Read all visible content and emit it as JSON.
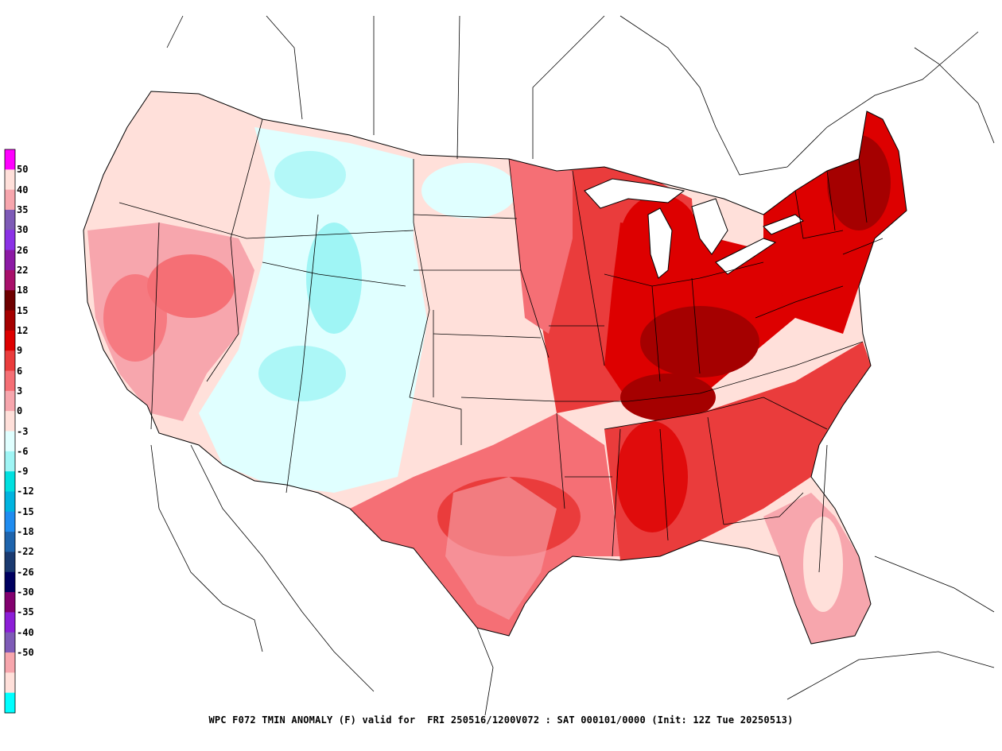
{
  "legend": {
    "swatch_colors": [
      "#ff00ff",
      "#ffe0da",
      "#f7a6ad",
      "#7e5bb7",
      "#8b32e6",
      "#8c1aa5",
      "#a8106a",
      "#6e0000",
      "#a50000",
      "#dd0000",
      "#ea3c3c",
      "#f56f75",
      "#f7a6ad",
      "#ffe0da",
      "#e0ffff",
      "#9ff5f5",
      "#00e0e0",
      "#00b4e0",
      "#1f8cf0",
      "#1e64ad",
      "#1a3a70",
      "#000060",
      "#82006e",
      "#8c1ed7",
      "#7e5bb7",
      "#f7a6ad",
      "#ffe0da",
      "#00ffff"
    ],
    "labels": [
      "50",
      "40",
      "35",
      "30",
      "26",
      "22",
      "18",
      "15",
      "12",
      "9",
      "6",
      "3",
      "0",
      "-3",
      "-6",
      "-9",
      "-12",
      "-15",
      "-18",
      "-22",
      "-26",
      "-30",
      "-35",
      "-40",
      "-50"
    ]
  },
  "caption": {
    "product": "WPC F072 TMIN ANOMALY (F) valid for",
    "valid": "FRI 250516/1200V072 : SAT 000101/0000",
    "init": "(Init: 12Z Tue 20250513)"
  },
  "map": {
    "ocean_color": "#ffffff",
    "outline_color": "#000000",
    "regions": [
      {
        "name": "northwest-coast",
        "color": "#ffe0da"
      },
      {
        "name": "california-nevada",
        "color": "#f7a6ad"
      },
      {
        "name": "rockies",
        "color": "#e0ffff"
      },
      {
        "name": "great-plains",
        "color": "#ffe0da"
      },
      {
        "name": "southern-plains",
        "color": "#f56f75"
      },
      {
        "name": "midwest",
        "color": "#ea3c3c"
      },
      {
        "name": "ohio-valley",
        "color": "#a50000"
      },
      {
        "name": "northeast",
        "color": "#dd0000"
      },
      {
        "name": "southeast",
        "color": "#ea3c3c"
      },
      {
        "name": "florida",
        "color": "#ffe0da"
      }
    ]
  }
}
